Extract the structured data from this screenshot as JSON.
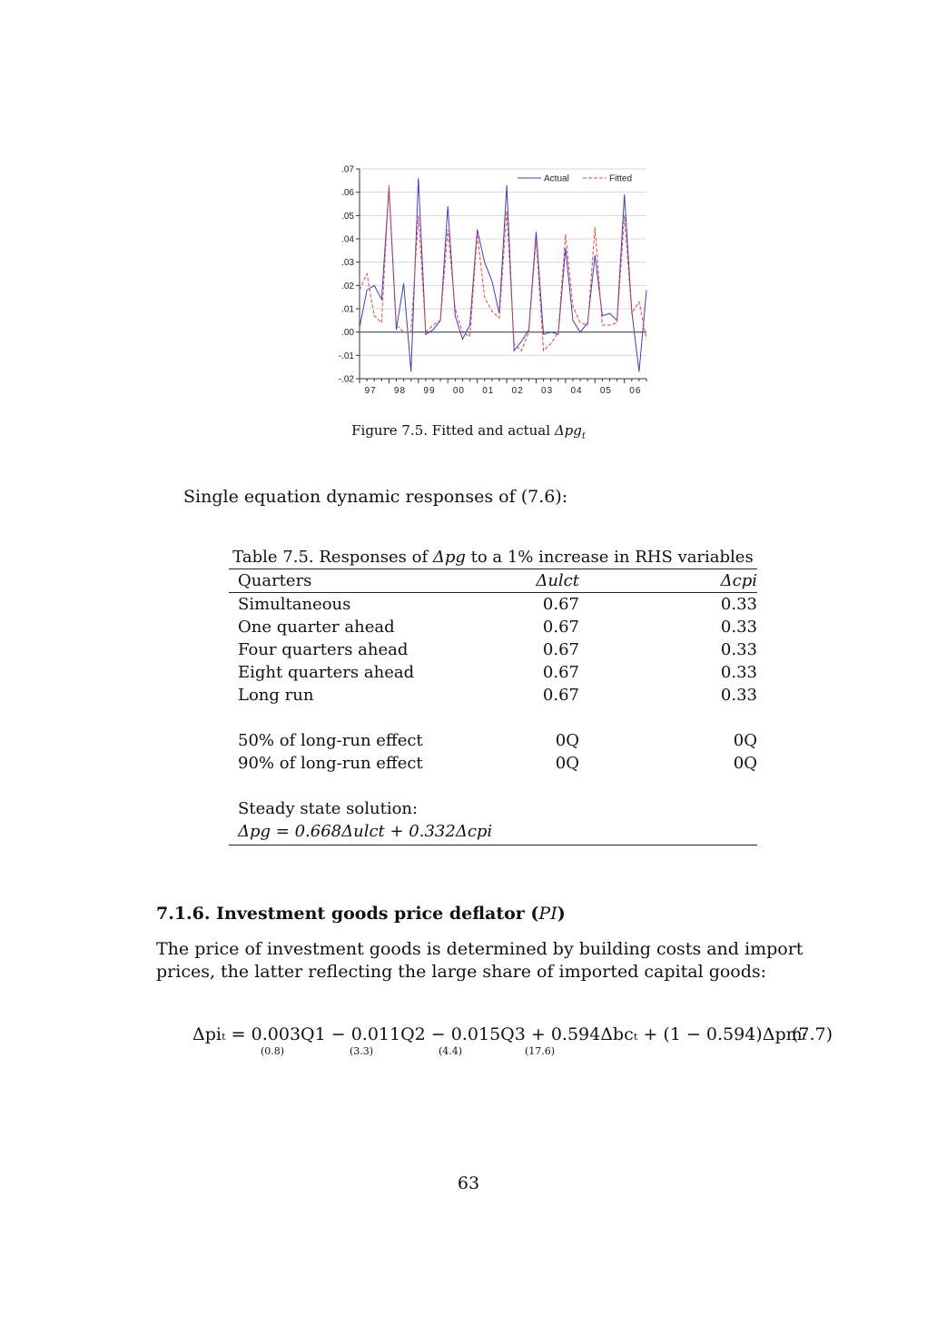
{
  "figure": {
    "caption_prefix": "Figure 7.5. Fitted and actual ",
    "caption_math": "Δpg",
    "caption_sub": "t"
  },
  "chart_data": {
    "type": "line",
    "x": [
      0,
      1,
      2,
      3,
      4,
      5,
      6,
      7,
      8,
      9,
      10,
      11,
      12,
      13,
      14,
      15,
      16,
      17,
      18,
      19,
      20,
      21,
      22,
      23,
      24,
      25,
      26,
      27,
      28,
      29,
      30,
      31,
      32,
      33,
      34,
      35,
      36,
      37,
      38,
      39
    ],
    "series": [
      {
        "name": "Actual",
        "color": "#3a3fc0",
        "values": [
          0.002,
          0.018,
          0.02,
          0.014,
          0.062,
          0.001,
          0.021,
          -0.017,
          0.066,
          -0.001,
          0.001,
          0.005,
          0.054,
          0.007,
          -0.003,
          0.003,
          0.044,
          0.03,
          0.022,
          0.008,
          0.063,
          -0.008,
          -0.004,
          0.001,
          0.043,
          -0.001,
          0.0,
          -0.001,
          0.036,
          0.005,
          0.0,
          0.004,
          0.033,
          0.007,
          0.008,
          0.005,
          0.059,
          0.009,
          -0.017,
          0.018
        ]
      },
      {
        "name": "Fitted",
        "color": "#e8453c",
        "values": [
          0.018,
          0.025,
          0.007,
          0.004,
          0.063,
          0.003,
          0.0,
          0.0,
          0.05,
          0.0,
          0.003,
          0.005,
          0.044,
          0.01,
          0.0,
          -0.002,
          0.042,
          0.015,
          0.009,
          0.006,
          0.052,
          -0.005,
          -0.008,
          0.0,
          0.04,
          -0.008,
          -0.005,
          0.0,
          0.042,
          0.011,
          0.004,
          0.003,
          0.045,
          0.003,
          0.003,
          0.004,
          0.05,
          0.008,
          0.013,
          -0.003
        ]
      }
    ],
    "x_tick_labels": [
      "97",
      "98",
      "99",
      "00",
      "01",
      "02",
      "03",
      "04",
      "05",
      "06"
    ],
    "y_tick_labels": [
      ".07",
      ".06",
      ".05",
      ".04",
      ".03",
      ".02",
      ".01",
      ".00",
      "-.01",
      "-.02"
    ],
    "y_ticks": [
      0.07,
      0.06,
      0.05,
      0.04,
      0.03,
      0.02,
      0.01,
      0.0,
      -0.01,
      -0.02
    ],
    "ylim": [
      -0.02,
      0.07
    ],
    "legend": "top-right",
    "legend_labels": [
      "Actual",
      "Fitted"
    ],
    "title": "",
    "xlabel": "",
    "ylabel": ""
  },
  "text": {
    "dynamic_intro": "Single equation dynamic responses of (7.6):"
  },
  "table": {
    "caption_pre": "Table 7.5. Responses of ",
    "caption_math": "Δpg",
    "caption_post": " to a 1% increase in RHS variables",
    "header": {
      "c1": "Quarters",
      "c2": "Δulct",
      "c3": "Δcpi"
    },
    "rows": [
      {
        "label": "Simultaneous",
        "v1": "0.67",
        "v2": "0.33"
      },
      {
        "label": "One quarter ahead",
        "v1": "0.67",
        "v2": "0.33"
      },
      {
        "label": "Four quarters ahead",
        "v1": "0.67",
        "v2": "0.33"
      },
      {
        "label": "Eight quarters ahead",
        "v1": "0.67",
        "v2": "0.33"
      },
      {
        "label": "Long run",
        "v1": "0.67",
        "v2": "0.33"
      }
    ],
    "effects": [
      {
        "label": "50% of long-run effect",
        "v1": "0Q",
        "v2": "0Q"
      },
      {
        "label": "90% of long-run effect",
        "v1": "0Q",
        "v2": "0Q"
      }
    ],
    "steady_label": "Steady state solution:",
    "steady_eq": "Δpg = 0.668Δulct + 0.332Δcpi"
  },
  "section": {
    "number_title": "7.1.6. Investment goods price deflator (",
    "math": "PI",
    "close": ")",
    "body": "The price of investment goods is determined by building costs and import prices, the latter reflecting the large share of imported capital goods:"
  },
  "equation": {
    "text": "Δpiₜ = 0.003Q1 − 0.011Q2 − 0.015Q3 + 0.594Δbcₜ + (1 − 0.594)Δpmₜ",
    "se": [
      "(0.8)",
      "(3.3)",
      "(4.4)",
      "(17.6)"
    ],
    "number": "(7.7)"
  },
  "page_number": "63"
}
